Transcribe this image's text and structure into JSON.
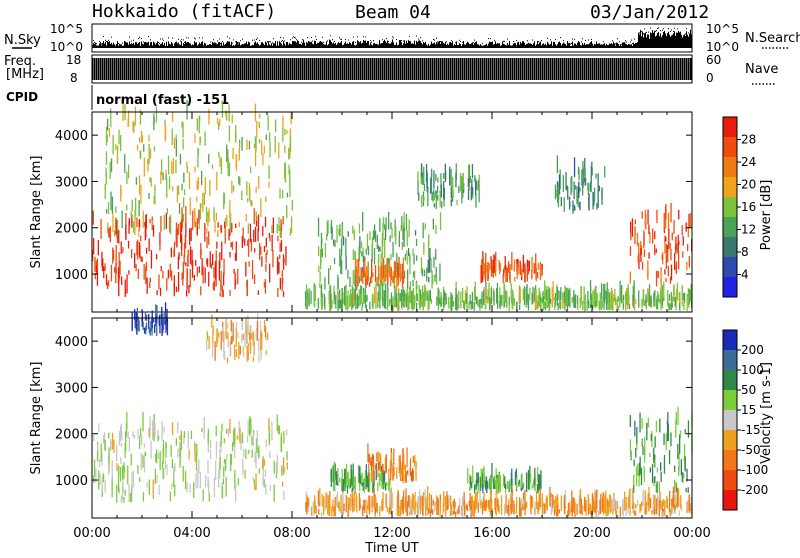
{
  "header": {
    "title": "Hokkaido (fitACF)",
    "beam": "Beam 04",
    "date": "03/Jan/2012"
  },
  "noise_panel": {
    "left_label": "N.Sky",
    "right_label": "N.Search",
    "left_ticks": [
      "10^5",
      "10^0"
    ],
    "right_ticks": [
      "10^5",
      "10^0"
    ]
  },
  "freq_panel": {
    "left_label_line1": "Freq.",
    "left_label_line2": "[MHz]",
    "left_ticks": [
      "18",
      "8"
    ],
    "right_label": "Nave",
    "right_ticks": [
      "60",
      "0"
    ]
  },
  "cpid": {
    "label": "CPID",
    "mode": "normal (fast) -151"
  },
  "colors": {
    "power": [
      "#1f24e0",
      "#2c4ab0",
      "#3a7a6e",
      "#4aa354",
      "#7cc33a",
      "#f2a21c",
      "#f07a14",
      "#f04c10",
      "#e81c0c"
    ],
    "velocity": [
      "#1c2ab8",
      "#3c6c9c",
      "#2e8a46",
      "#7ccd3c",
      "#c8c8c8",
      "#f0a020",
      "#f07818",
      "#ef4c12",
      "#e8160c"
    ]
  },
  "chart_data": [
    {
      "type": "heatmap",
      "name": "power",
      "ylabel": "Slant Range [km]",
      "xlabel": "Time UT",
      "x_ticks": [
        "00:00",
        "04:00",
        "08:00",
        "12:00",
        "16:00",
        "20:00",
        "00:00"
      ],
      "xlim": [
        0,
        24
      ],
      "ylim": [
        180,
        4500
      ],
      "y_ticks": [
        1000,
        2000,
        3000,
        4000
      ],
      "colorbar": {
        "label": "Power [dB]",
        "ticks": [
          "4",
          "8",
          "12",
          "16",
          "20",
          "24",
          "28"
        ],
        "range": [
          0,
          30
        ]
      },
      "regions": [
        {
          "t0": 0.0,
          "t1": 7.8,
          "r0": 500,
          "r1": 2100,
          "level": 0.95
        },
        {
          "t0": 0.5,
          "t1": 8.0,
          "r0": 1800,
          "r1": 4400,
          "level": 0.55
        },
        {
          "t0": 9.0,
          "t1": 14.0,
          "r0": 600,
          "r1": 2000,
          "level": 0.4
        },
        {
          "t0": 10.5,
          "t1": 12.5,
          "r0": 700,
          "r1": 1000,
          "level": 0.8
        },
        {
          "t0": 15.5,
          "t1": 18.0,
          "r0": 800,
          "r1": 1100,
          "level": 0.85
        },
        {
          "t0": 13.0,
          "t1": 15.5,
          "r0": 2400,
          "r1": 3100,
          "level": 0.35
        },
        {
          "t0": 18.5,
          "t1": 20.5,
          "r0": 2300,
          "r1": 3200,
          "level": 0.3
        },
        {
          "t0": 21.5,
          "t1": 24.0,
          "r0": 700,
          "r1": 2200,
          "level": 0.9
        },
        {
          "t0": 8.5,
          "t1": 24.0,
          "r0": 200,
          "r1": 450,
          "level": 0.45
        }
      ]
    },
    {
      "type": "heatmap",
      "name": "velocity",
      "ylabel": "Slant Range [km]",
      "xlabel": "Time UT",
      "x_ticks": [
        "00:00",
        "04:00",
        "08:00",
        "12:00",
        "16:00",
        "20:00",
        "00:00"
      ],
      "xlim": [
        0,
        24
      ],
      "ylim": [
        180,
        4500
      ],
      "y_ticks": [
        1000,
        2000,
        3000,
        4000
      ],
      "colorbar": {
        "label": "Velocity [m s-1]",
        "ticks": [
          "200",
          "100",
          "50",
          "15",
          "-15",
          "-50",
          "-100",
          "-200"
        ],
        "range": [
          -250,
          250
        ]
      },
      "regions": [
        {
          "t0": 0.0,
          "t1": 7.8,
          "r0": 500,
          "r1": 2100,
          "level": 0.45
        },
        {
          "t0": 1.5,
          "t1": 3.0,
          "r0": 4100,
          "r1": 4450,
          "level": 0.05
        },
        {
          "t0": 4.5,
          "t1": 7.0,
          "r0": 3500,
          "r1": 4300,
          "level": 0.6
        },
        {
          "t0": 9.5,
          "t1": 12.0,
          "r0": 700,
          "r1": 1000,
          "level": 0.3
        },
        {
          "t0": 11.0,
          "t1": 13.0,
          "r0": 900,
          "r1": 1400,
          "level": 0.75
        },
        {
          "t0": 15.0,
          "t1": 18.0,
          "r0": 700,
          "r1": 950,
          "level": 0.3
        },
        {
          "t0": 21.5,
          "t1": 24.0,
          "r0": 700,
          "r1": 2200,
          "level": 0.3
        },
        {
          "t0": 8.5,
          "t1": 24.0,
          "r0": 200,
          "r1": 450,
          "level": 0.65
        }
      ]
    }
  ]
}
